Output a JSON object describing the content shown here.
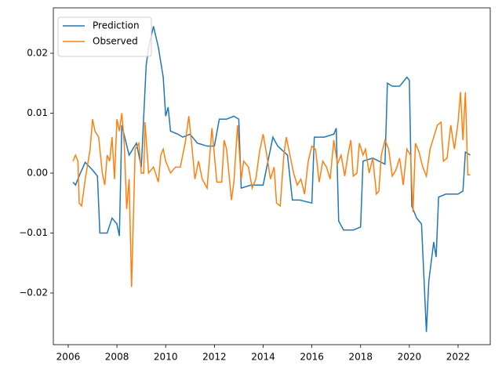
{
  "chart_data": {
    "type": "line",
    "xlim": [
      2005.39,
      2023.32
    ],
    "xticks": [
      2006,
      2008,
      2010,
      2012,
      2014,
      2016,
      2018,
      2020,
      2022
    ],
    "ylim": [
      -0.02863,
      0.02758
    ],
    "yticks": [
      {
        "value": -0.02,
        "label": "−0.02"
      },
      {
        "value": -0.01,
        "label": "−0.01"
      },
      {
        "value": 0,
        "label": "0.00"
      },
      {
        "value": 0.01,
        "label": "0.01"
      },
      {
        "value": 0.02,
        "label": "0.02"
      }
    ],
    "legend": "upper left",
    "series": [
      {
        "name": "Prediction",
        "color": "#1f77b4",
        "x": [
          2006.2,
          2006.3,
          2006.5,
          2006.7,
          2007.0,
          2007.2,
          2007.3,
          2007.6,
          2007.8,
          2008.0,
          2008.1,
          2008.2,
          2008.5,
          2008.8,
          2009.0,
          2009.2,
          2009.3,
          2009.5,
          2009.7,
          2009.9,
          2010.0,
          2010.1,
          2010.2,
          2010.5,
          2010.7,
          2011.0,
          2011.3,
          2011.7,
          2012.0,
          2012.2,
          2012.5,
          2012.8,
          2013.0,
          2013.1,
          2013.5,
          2014.0,
          2014.2,
          2014.4,
          2014.6,
          2015.0,
          2015.2,
          2015.5,
          2016.0,
          2016.1,
          2016.5,
          2016.9,
          2017.0,
          2017.1,
          2017.3,
          2017.7,
          2018.0,
          2018.1,
          2018.5,
          2019.0,
          2019.1,
          2019.3,
          2019.6,
          2019.9,
          2020.0,
          2020.1,
          2020.3,
          2020.5,
          2020.7,
          2020.8,
          2021.0,
          2021.1,
          2021.2,
          2021.5,
          2022.0,
          2022.2,
          2022.3,
          2022.5
        ],
        "values": [
          -0.0015,
          -0.002,
          0.0,
          0.0018,
          0.0005,
          -0.0005,
          -0.01,
          -0.01,
          -0.0075,
          -0.0085,
          -0.0105,
          0.008,
          0.003,
          0.005,
          0.001,
          0.018,
          0.021,
          0.0245,
          0.021,
          0.016,
          0.0095,
          0.011,
          0.007,
          0.0065,
          0.006,
          0.0065,
          0.005,
          0.0045,
          0.0045,
          0.009,
          0.009,
          0.0095,
          0.009,
          -0.0025,
          -0.002,
          -0.002,
          0.002,
          0.006,
          0.0045,
          0.003,
          -0.0045,
          -0.0045,
          -0.005,
          0.006,
          0.006,
          0.0065,
          0.0075,
          -0.008,
          -0.0095,
          -0.0095,
          -0.009,
          0.002,
          0.0025,
          0.0015,
          0.015,
          0.0145,
          0.0145,
          0.016,
          0.0155,
          -0.0055,
          -0.0075,
          -0.0085,
          -0.0265,
          -0.018,
          -0.0115,
          -0.014,
          -0.004,
          -0.0035,
          -0.0035,
          -0.003,
          0.0035,
          0.003
        ]
      },
      {
        "name": "Observed",
        "color": "#ff7f0e",
        "x": [
          2006.2,
          2006.3,
          2006.4,
          2006.45,
          2006.55,
          2006.7,
          2006.9,
          2007.0,
          2007.1,
          2007.25,
          2007.4,
          2007.5,
          2007.6,
          2007.7,
          2007.8,
          2007.9,
          2008.0,
          2008.1,
          2008.2,
          2008.3,
          2008.4,
          2008.5,
          2008.6,
          2008.75,
          2008.9,
          2009.0,
          2009.1,
          2009.15,
          2009.3,
          2009.5,
          2009.7,
          2009.8,
          2009.9,
          2010.0,
          2010.2,
          2010.4,
          2010.6,
          2010.8,
          2010.95,
          2011.1,
          2011.2,
          2011.35,
          2011.5,
          2011.7,
          2011.85,
          2011.9,
          2012.1,
          2012.3,
          2012.4,
          2012.5,
          2012.7,
          2012.8,
          2012.95,
          2013.1,
          2013.2,
          2013.4,
          2013.55,
          2013.7,
          2013.85,
          2014.0,
          2014.15,
          2014.3,
          2014.45,
          2014.55,
          2014.7,
          2014.85,
          2014.95,
          2015.1,
          2015.25,
          2015.4,
          2015.55,
          2015.7,
          2015.85,
          2016.0,
          2016.15,
          2016.3,
          2016.45,
          2016.6,
          2016.75,
          2016.9,
          2017.05,
          2017.2,
          2017.35,
          2017.5,
          2017.6,
          2017.7,
          2017.85,
          2017.95,
          2018.1,
          2018.2,
          2018.35,
          2018.5,
          2018.65,
          2018.75,
          2018.85,
          2019.0,
          2019.15,
          2019.3,
          2019.45,
          2019.6,
          2019.75,
          2019.9,
          2020.05,
          2020.15,
          2020.25,
          2020.4,
          2020.55,
          2020.7,
          2020.85,
          2021.0,
          2021.15,
          2021.3,
          2021.4,
          2021.55,
          2021.7,
          2021.85,
          2022.0,
          2022.1,
          2022.2,
          2022.3,
          2022.4,
          2022.5
        ],
        "values": [
          0.002,
          0.003,
          0.002,
          -0.005,
          -0.0055,
          -0.001,
          0.004,
          0.009,
          0.007,
          0.006,
          0.0,
          -0.002,
          0.003,
          0.002,
          0.006,
          -0.001,
          0.009,
          0.007,
          0.01,
          0.005,
          -0.006,
          -0.001,
          -0.019,
          0.004,
          0.005,
          0.0,
          0.0,
          0.0085,
          0.0,
          0.001,
          -0.0015,
          0.003,
          0.004,
          0.002,
          0.0,
          0.001,
          0.001,
          0.005,
          0.0095,
          0.0035,
          -0.001,
          0.002,
          -0.001,
          -0.0025,
          0.005,
          0.0075,
          -0.0015,
          -0.0015,
          0.0055,
          0.004,
          -0.0045,
          -0.0015,
          0.008,
          -0.001,
          0.002,
          0.001,
          -0.0025,
          -0.001,
          0.0035,
          0.0065,
          0.003,
          -0.001,
          0.001,
          -0.005,
          -0.0055,
          0.003,
          0.006,
          0.003,
          0.0,
          -0.002,
          -0.001,
          -0.0035,
          0.002,
          0.0045,
          0.004,
          -0.0015,
          0.002,
          0.001,
          -0.001,
          0.0055,
          0.0015,
          0.003,
          -0.0005,
          0.0035,
          0.0055,
          -0.0005,
          0.0,
          0.005,
          0.003,
          0.004,
          0.0,
          0.0025,
          -0.0035,
          -0.003,
          0.003,
          0.0055,
          0.004,
          -0.0005,
          0.0005,
          0.0025,
          -0.002,
          0.004,
          0.003,
          -0.0065,
          0.005,
          0.0035,
          0.001,
          -0.0005,
          0.004,
          0.006,
          0.008,
          0.0085,
          0.002,
          0.0025,
          0.008,
          0.004,
          0.0085,
          0.0135,
          0.0055,
          0.0135,
          -0.0003,
          -0.0003
        ]
      }
    ]
  }
}
